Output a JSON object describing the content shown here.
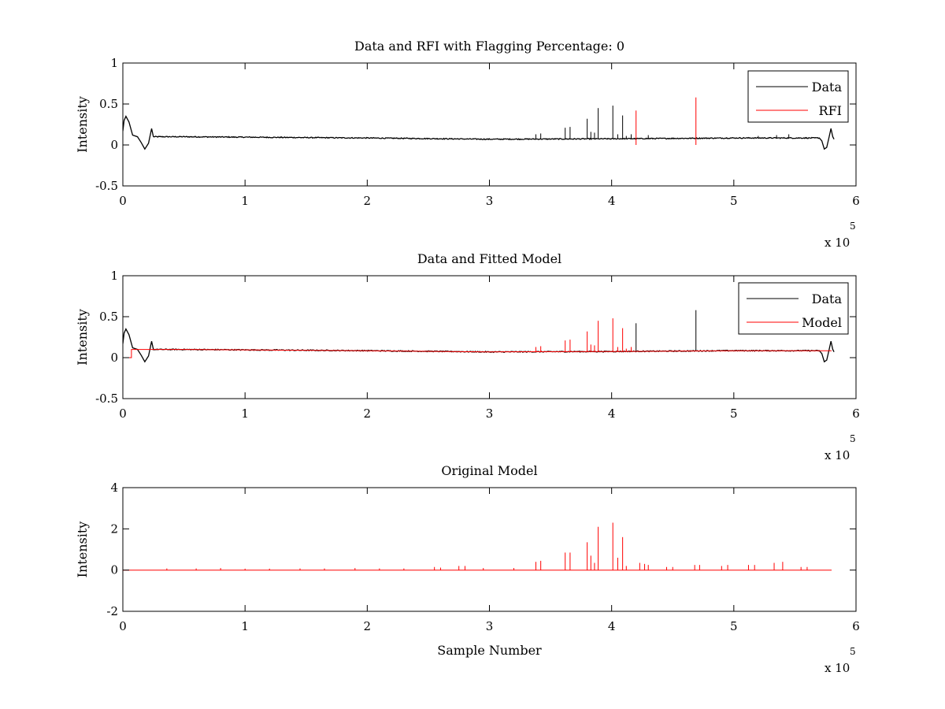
{
  "colors": {
    "data": "#000000",
    "rfi": "#ff0000",
    "background": "#ffffff"
  },
  "chart_data": [
    {
      "type": "line",
      "title": "Data and RFI with Flagging Percentage: 0",
      "xlabel": "",
      "ylabel": "Intensity",
      "xlim": [
        0,
        600000
      ],
      "ylim": [
        -0.5,
        1
      ],
      "xticks": [
        0,
        100000,
        200000,
        300000,
        400000,
        500000,
        600000
      ],
      "xtick_labels": [
        "0",
        "1",
        "2",
        "3",
        "4",
        "5",
        "6"
      ],
      "yticks": [
        -0.5,
        0,
        0.5,
        1
      ],
      "ytick_labels": [
        "-0.5",
        "0",
        "0.5",
        "1"
      ],
      "exponent_label": "x 10",
      "exponent_power": "5",
      "legend": {
        "position": "top-right",
        "entries": [
          "Data",
          "RFI"
        ]
      },
      "series": [
        {
          "name": "Data",
          "color": "#000000",
          "baseline": [
            [
              0,
              0.1
            ],
            [
              50000,
              0.1
            ],
            [
              100000,
              0.095
            ],
            [
              200000,
              0.085
            ],
            [
              300000,
              0.07
            ],
            [
              400000,
              0.075
            ],
            [
              500000,
              0.085
            ],
            [
              570000,
              0.085
            ]
          ],
          "start": [
            [
              0,
              0.17
            ],
            [
              1000,
              0.3
            ],
            [
              2500,
              0.35
            ],
            [
              5000,
              0.28
            ],
            [
              8000,
              0.12
            ],
            [
              12000,
              0.1
            ],
            [
              15000,
              0.03
            ],
            [
              18000,
              -0.05
            ],
            [
              21000,
              0.02
            ],
            [
              23500,
              0.2
            ],
            [
              25000,
              0.1
            ]
          ],
          "end": [
            [
              570000,
              0.085
            ],
            [
              572000,
              0.05
            ],
            [
              574000,
              -0.05
            ],
            [
              576000,
              -0.03
            ],
            [
              578000,
              0.1
            ],
            [
              579500,
              0.2
            ],
            [
              581000,
              0.1
            ],
            [
              582000,
              0.07
            ]
          ],
          "spikes": [
            [
              338000,
              0.13
            ],
            [
              342000,
              0.14
            ],
            [
              362000,
              0.21
            ],
            [
              366000,
              0.22
            ],
            [
              380000,
              0.32
            ],
            [
              383000,
              0.16
            ],
            [
              386000,
              0.15
            ],
            [
              389000,
              0.45
            ],
            [
              401000,
              0.48
            ],
            [
              405000,
              0.13
            ],
            [
              409000,
              0.36
            ],
            [
              412000,
              0.11
            ],
            [
              416000,
              0.13
            ],
            [
              430000,
              0.12
            ],
            [
              520000,
              0.11
            ],
            [
              535000,
              0.12
            ],
            [
              545000,
              0.13
            ]
          ]
        },
        {
          "name": "RFI",
          "color": "#ff0000",
          "spikes": [
            [
              420000,
              0.42
            ],
            [
              469000,
              0.58
            ]
          ]
        }
      ]
    },
    {
      "type": "line",
      "title": "Data and Fitted Model",
      "xlabel": "",
      "ylabel": "Intensity",
      "xlim": [
        0,
        600000
      ],
      "ylim": [
        -0.5,
        1
      ],
      "xticks": [
        0,
        100000,
        200000,
        300000,
        400000,
        500000,
        600000
      ],
      "xtick_labels": [
        "0",
        "1",
        "2",
        "3",
        "4",
        "5",
        "6"
      ],
      "yticks": [
        -0.5,
        0,
        0.5,
        1
      ],
      "ytick_labels": [
        "-0.5",
        "0",
        "0.5",
        "1"
      ],
      "exponent_label": "x 10",
      "exponent_power": "5",
      "legend": {
        "position": "top-right",
        "entries": [
          "Data",
          "Model"
        ]
      },
      "series": [
        {
          "name": "Data",
          "color": "#000000",
          "baseline": [
            [
              0,
              0.1
            ],
            [
              50000,
              0.1
            ],
            [
              100000,
              0.095
            ],
            [
              200000,
              0.085
            ],
            [
              300000,
              0.07
            ],
            [
              400000,
              0.075
            ],
            [
              500000,
              0.085
            ],
            [
              570000,
              0.085
            ]
          ],
          "start": [
            [
              0,
              0.17
            ],
            [
              1000,
              0.3
            ],
            [
              2500,
              0.35
            ],
            [
              5000,
              0.28
            ],
            [
              8000,
              0.12
            ],
            [
              12000,
              0.1
            ],
            [
              15000,
              0.03
            ],
            [
              18000,
              -0.05
            ],
            [
              21000,
              0.02
            ],
            [
              23500,
              0.2
            ],
            [
              25000,
              0.1
            ]
          ],
          "end": [
            [
              570000,
              0.085
            ],
            [
              572000,
              0.05
            ],
            [
              574000,
              -0.05
            ],
            [
              576000,
              -0.03
            ],
            [
              578000,
              0.1
            ],
            [
              579500,
              0.2
            ],
            [
              581000,
              0.1
            ],
            [
              582000,
              0.07
            ]
          ],
          "spikes": [
            [
              420000,
              0.42
            ],
            [
              469000,
              0.58
            ]
          ]
        },
        {
          "name": "Model",
          "color": "#ff0000",
          "baseline": [
            [
              0,
              0.0
            ],
            [
              7000,
              0.0
            ],
            [
              7000,
              0.1
            ],
            [
              50000,
              0.1
            ],
            [
              100000,
              0.095
            ],
            [
              200000,
              0.085
            ],
            [
              300000,
              0.07
            ],
            [
              400000,
              0.075
            ],
            [
              500000,
              0.085
            ],
            [
              580000,
              0.085
            ]
          ],
          "spikes": [
            [
              338000,
              0.13
            ],
            [
              342000,
              0.14
            ],
            [
              362000,
              0.21
            ],
            [
              366000,
              0.22
            ],
            [
              380000,
              0.32
            ],
            [
              383000,
              0.16
            ],
            [
              386000,
              0.15
            ],
            [
              389000,
              0.45
            ],
            [
              401000,
              0.48
            ],
            [
              405000,
              0.13
            ],
            [
              409000,
              0.36
            ],
            [
              412000,
              0.11
            ],
            [
              416000,
              0.13
            ]
          ]
        }
      ]
    },
    {
      "type": "line",
      "title": "Original Model",
      "xlabel": "Sample Number",
      "ylabel": "Intensity",
      "xlim": [
        0,
        600000
      ],
      "ylim": [
        -2,
        4
      ],
      "xticks": [
        0,
        100000,
        200000,
        300000,
        400000,
        500000,
        600000
      ],
      "xtick_labels": [
        "0",
        "1",
        "2",
        "3",
        "4",
        "5",
        "6"
      ],
      "yticks": [
        -2,
        0,
        2,
        4
      ],
      "ytick_labels": [
        "-2",
        "0",
        "2",
        "4"
      ],
      "exponent_label": "x 10",
      "exponent_power": "5",
      "legend": null,
      "series": [
        {
          "name": "",
          "color": "#ff0000",
          "baseline": [
            [
              0,
              0
            ],
            [
              580000,
              0
            ]
          ],
          "spikes": [
            [
              36000,
              0.08
            ],
            [
              60000,
              0.08
            ],
            [
              80000,
              0.1
            ],
            [
              100000,
              0.07
            ],
            [
              120000,
              0.07
            ],
            [
              145000,
              0.08
            ],
            [
              165000,
              0.08
            ],
            [
              190000,
              0.1
            ],
            [
              210000,
              0.08
            ],
            [
              230000,
              0.08
            ],
            [
              255000,
              0.15
            ],
            [
              260000,
              0.12
            ],
            [
              275000,
              0.2
            ],
            [
              280000,
              0.2
            ],
            [
              295000,
              0.1
            ],
            [
              320000,
              0.1
            ],
            [
              338000,
              0.4
            ],
            [
              342000,
              0.45
            ],
            [
              362000,
              0.85
            ],
            [
              366000,
              0.85
            ],
            [
              380000,
              1.35
            ],
            [
              383000,
              0.7
            ],
            [
              386000,
              0.35
            ],
            [
              389000,
              2.1
            ],
            [
              401000,
              2.3
            ],
            [
              405000,
              0.6
            ],
            [
              409000,
              1.6
            ],
            [
              412000,
              0.2
            ],
            [
              423000,
              0.35
            ],
            [
              427000,
              0.3
            ],
            [
              430000,
              0.25
            ],
            [
              445000,
              0.15
            ],
            [
              450000,
              0.15
            ],
            [
              468000,
              0.25
            ],
            [
              472000,
              0.25
            ],
            [
              490000,
              0.2
            ],
            [
              495000,
              0.25
            ],
            [
              512000,
              0.25
            ],
            [
              517000,
              0.25
            ],
            [
              533000,
              0.35
            ],
            [
              540000,
              0.4
            ],
            [
              555000,
              0.15
            ],
            [
              560000,
              0.15
            ]
          ]
        }
      ]
    }
  ]
}
